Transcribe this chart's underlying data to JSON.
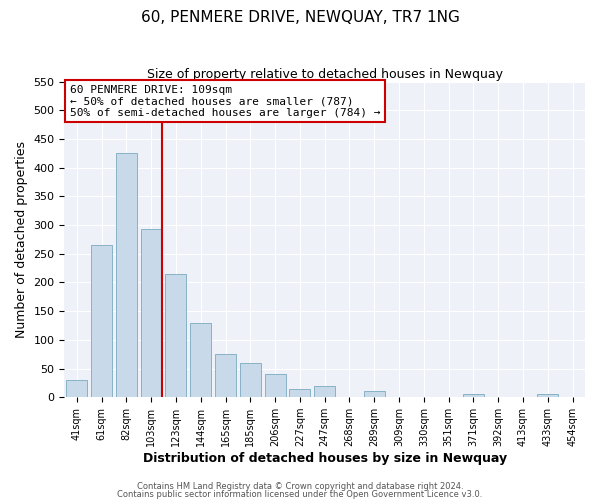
{
  "title": "60, PENMERE DRIVE, NEWQUAY, TR7 1NG",
  "subtitle": "Size of property relative to detached houses in Newquay",
  "xlabel": "Distribution of detached houses by size in Newquay",
  "ylabel": "Number of detached properties",
  "bar_labels": [
    "41sqm",
    "61sqm",
    "82sqm",
    "103sqm",
    "123sqm",
    "144sqm",
    "165sqm",
    "185sqm",
    "206sqm",
    "227sqm",
    "247sqm",
    "268sqm",
    "289sqm",
    "309sqm",
    "330sqm",
    "351sqm",
    "371sqm",
    "392sqm",
    "413sqm",
    "433sqm",
    "454sqm"
  ],
  "bar_values": [
    30,
    265,
    425,
    293,
    215,
    130,
    76,
    59,
    40,
    15,
    20,
    0,
    10,
    0,
    0,
    0,
    5,
    0,
    0,
    5,
    0
  ],
  "bar_color": "#c8daea",
  "bar_edge_color": "#7baabf",
  "vline_color": "#cc0000",
  "vline_idx": 3,
  "annotation_title": "60 PENMERE DRIVE: 109sqm",
  "annotation_line1": "← 50% of detached houses are smaller (787)",
  "annotation_line2": "50% of semi-detached houses are larger (784) →",
  "annotation_box_edgecolor": "#cc0000",
  "ylim": [
    0,
    550
  ],
  "yticks": [
    0,
    50,
    100,
    150,
    200,
    250,
    300,
    350,
    400,
    450,
    500,
    550
  ],
  "footer1": "Contains HM Land Registry data © Crown copyright and database right 2024.",
  "footer2": "Contains public sector information licensed under the Open Government Licence v3.0.",
  "bg_color": "#ffffff",
  "plot_bg_color": "#eef2f8",
  "grid_color": "#ffffff",
  "title_fontsize": 11,
  "subtitle_fontsize": 9,
  "xlabel_fontsize": 9,
  "ylabel_fontsize": 9
}
